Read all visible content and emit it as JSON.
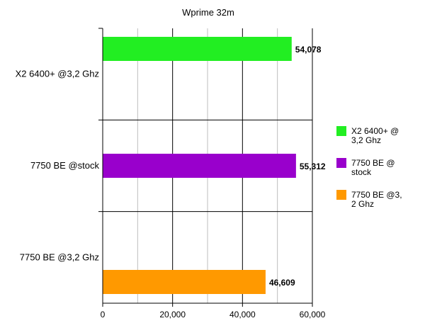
{
  "chart_data": {
    "type": "bar",
    "orientation": "horizontal",
    "title": "Wprime 32m",
    "categories": [
      "X2 6400+ @3,2 Ghz",
      "7750 BE @stock",
      "7750 BE @3,2 Ghz"
    ],
    "values": [
      54.078,
      55.312,
      46.609
    ],
    "value_labels": [
      "54,078",
      "55,312",
      "46,609"
    ],
    "colors": [
      "#22ee22",
      "#9900cc",
      "#ff9900"
    ],
    "xlim": [
      0,
      60
    ],
    "x_ticks": [
      0,
      20,
      40,
      60
    ],
    "x_tick_labels": [
      "0",
      "20,000",
      "40,000",
      "60,000"
    ],
    "grid": true,
    "legend": {
      "position": "right",
      "entries": [
        {
          "lines": [
            "X2 6400+ @",
            "3,2 Ghz"
          ],
          "color": "#22ee22"
        },
        {
          "lines": [
            "7750 BE @",
            "stock"
          ],
          "color": "#9900cc"
        },
        {
          "lines": [
            "7750 BE @3,",
            "2 Ghz"
          ],
          "color": "#ff9900"
        }
      ]
    }
  }
}
